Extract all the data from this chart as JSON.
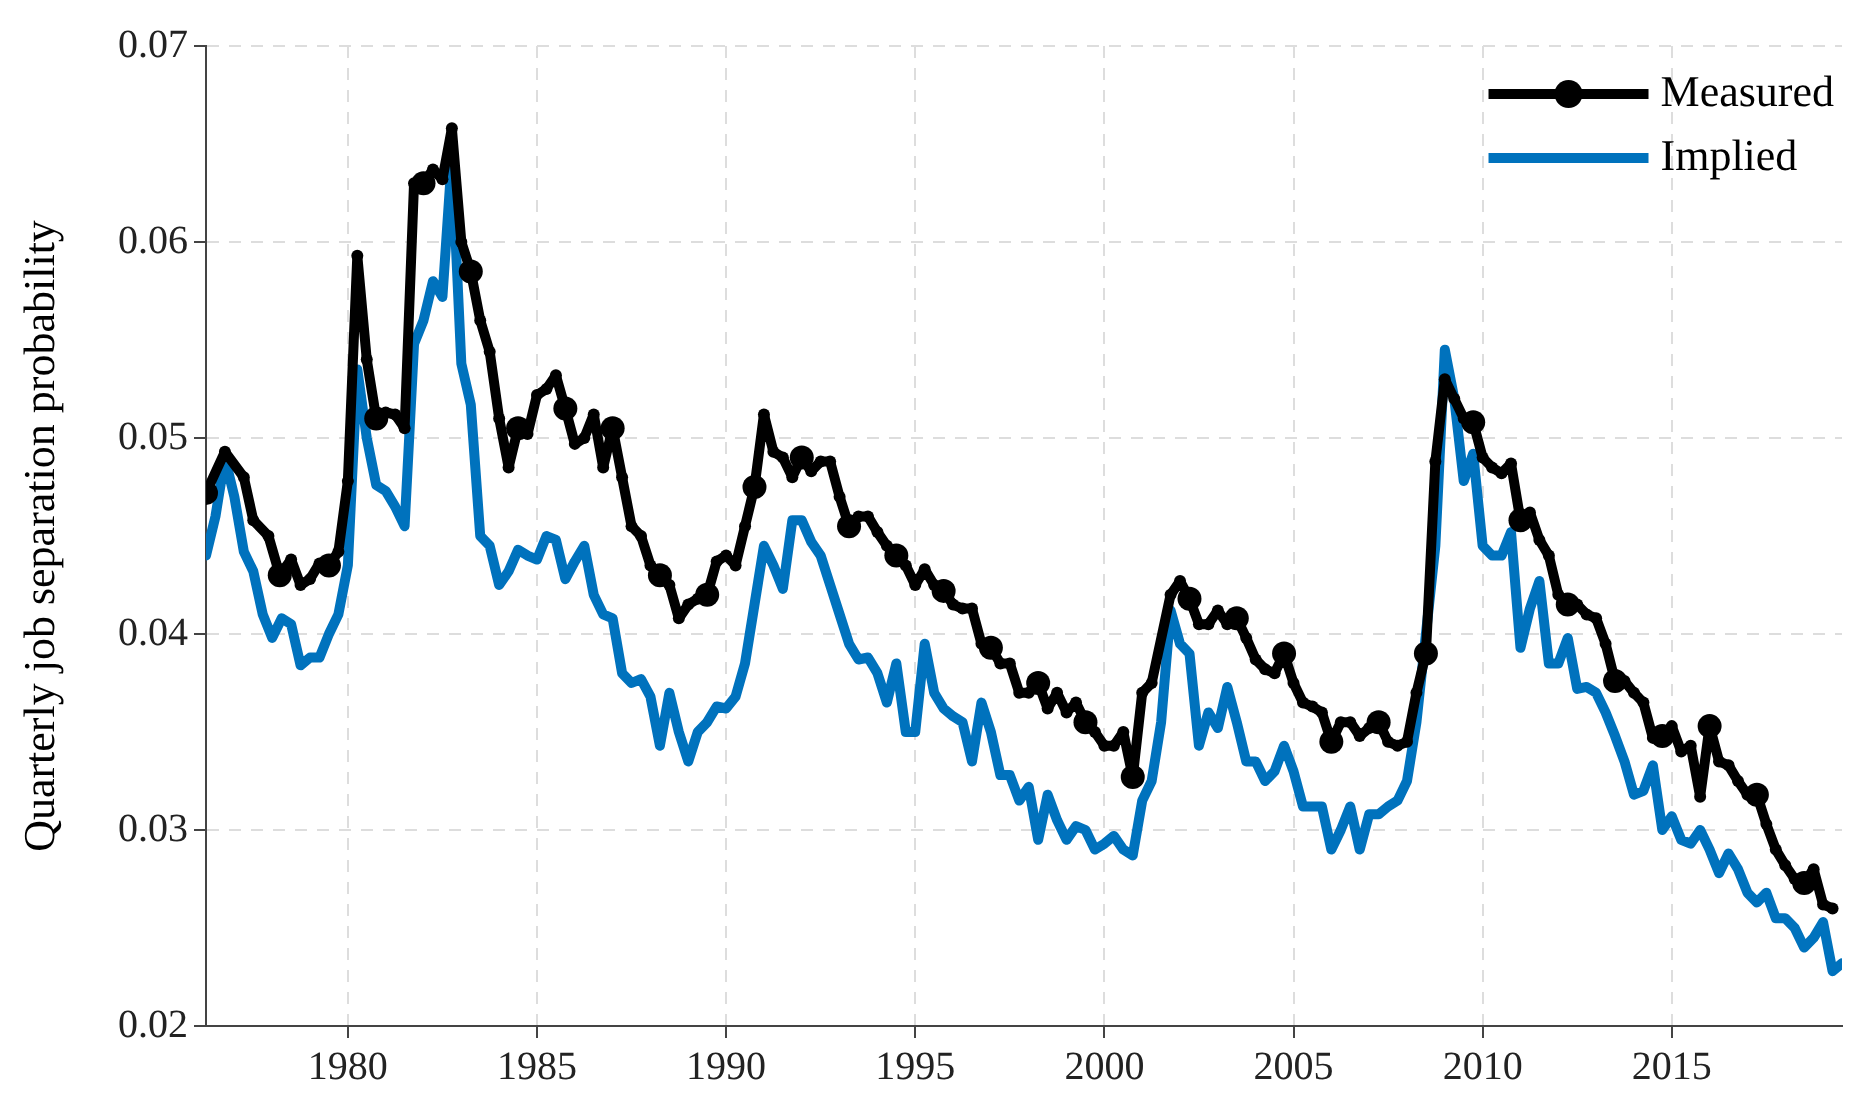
{
  "chart_data": {
    "type": "line",
    "ylabel": "Quarterly job separation probability",
    "xlim": [
      1976.25,
      2019.5
    ],
    "xticks": [
      1980,
      1985,
      1990,
      1995,
      2000,
      2005,
      2010,
      2015
    ],
    "ylim": [
      0.02,
      0.07
    ],
    "yticks": [
      0.02,
      0.03,
      0.04,
      0.05,
      0.06,
      0.07
    ],
    "grid": true,
    "legend": "top right",
    "line_style": "solid",
    "series": [
      {
        "name": "Measured",
        "color": "#000000",
        "marker": "circle",
        "x": [
          1976.25,
          1976.75,
          1977.25,
          1977.5,
          1977.9,
          1978.2,
          1978.5,
          1978.75,
          1979.0,
          1979.25,
          1979.5,
          1979.75,
          1980.0,
          1980.25,
          1980.5,
          1980.75,
          1981.0,
          1981.25,
          1981.5,
          1981.75,
          1982.0,
          1982.25,
          1982.5,
          1982.75,
          1983.0,
          1983.25,
          1983.5,
          1983.75,
          1984.0,
          1984.25,
          1984.5,
          1984.75,
          1985.0,
          1985.25,
          1985.5,
          1985.75,
          1986.0,
          1986.25,
          1986.5,
          1986.75,
          1987.0,
          1987.25,
          1987.5,
          1987.75,
          1988.0,
          1988.25,
          1988.5,
          1988.75,
          1989.0,
          1989.25,
          1989.5,
          1989.75,
          1990.0,
          1990.25,
          1990.5,
          1990.75,
          1991.0,
          1991.25,
          1991.5,
          1991.75,
          1992.0,
          1992.25,
          1992.5,
          1992.75,
          1993.0,
          1993.25,
          1993.5,
          1993.75,
          1994.0,
          1994.25,
          1994.5,
          1994.75,
          1995.0,
          1995.25,
          1995.5,
          1995.75,
          1996.0,
          1996.25,
          1996.5,
          1996.75,
          1997.0,
          1997.25,
          1997.5,
          1997.75,
          1998.0,
          1998.25,
          1998.5,
          1998.75,
          1999.0,
          1999.25,
          1999.5,
          1999.75,
          2000.0,
          2000.25,
          2000.5,
          2000.75,
          2001.0,
          2001.25,
          2001.75,
          2002.0,
          2002.25,
          2002.5,
          2002.75,
          2003.0,
          2003.25,
          2003.5,
          2003.75,
          2004.0,
          2004.25,
          2004.5,
          2004.75,
          2005.0,
          2005.25,
          2005.5,
          2005.75,
          2006.0,
          2006.25,
          2006.5,
          2006.75,
          2007.0,
          2007.25,
          2007.5,
          2007.75,
          2008.0,
          2008.25,
          2008.5,
          2008.75,
          2009.0,
          2009.25,
          2009.5,
          2009.75,
          2010.0,
          2010.25,
          2010.5,
          2010.75,
          2011.0,
          2011.25,
          2011.5,
          2011.75,
          2012.0,
          2012.25,
          2012.5,
          2012.75,
          2013.0,
          2013.25,
          2013.5,
          2013.75,
          2014.0,
          2014.25,
          2014.5,
          2014.75,
          2015.0,
          2015.25,
          2015.5,
          2015.75,
          2016.0,
          2016.25,
          2016.5,
          2016.75,
          2017.0,
          2017.25,
          2017.5,
          2017.75,
          2018.0,
          2018.25,
          2018.5,
          2018.75,
          2019.0,
          2019.25
        ],
        "values": [
          0.0472,
          0.0493,
          0.048,
          0.0458,
          0.045,
          0.043,
          0.0438,
          0.0425,
          0.0428,
          0.0436,
          0.0435,
          0.0442,
          0.0478,
          0.0593,
          0.054,
          0.051,
          0.0513,
          0.0512,
          0.0505,
          0.063,
          0.063,
          0.0637,
          0.0632,
          0.0658,
          0.06,
          0.0585,
          0.056,
          0.0544,
          0.051,
          0.0485,
          0.0505,
          0.0502,
          0.0522,
          0.0525,
          0.0532,
          0.0515,
          0.0497,
          0.05,
          0.0512,
          0.0485,
          0.0505,
          0.048,
          0.0455,
          0.045,
          0.0435,
          0.043,
          0.0425,
          0.0408,
          0.0415,
          0.0418,
          0.042,
          0.0437,
          0.044,
          0.0435,
          0.0455,
          0.0475,
          0.0512,
          0.0493,
          0.049,
          0.048,
          0.049,
          0.0483,
          0.0488,
          0.0488,
          0.047,
          0.0455,
          0.046,
          0.046,
          0.0452,
          0.0445,
          0.044,
          0.0435,
          0.0425,
          0.0433,
          0.0425,
          0.0422,
          0.0415,
          0.0413,
          0.0413,
          0.0395,
          0.0393,
          0.0385,
          0.0385,
          0.037,
          0.037,
          0.0375,
          0.0362,
          0.037,
          0.036,
          0.0365,
          0.0355,
          0.035,
          0.0343,
          0.0343,
          0.035,
          0.0327,
          0.037,
          0.0375,
          0.042,
          0.0427,
          0.0418,
          0.0405,
          0.0405,
          0.0412,
          0.0405,
          0.0408,
          0.0398,
          0.0387,
          0.0382,
          0.038,
          0.039,
          0.0375,
          0.0365,
          0.0363,
          0.036,
          0.0345,
          0.0355,
          0.0355,
          0.0348,
          0.0352,
          0.0355,
          0.0345,
          0.0343,
          0.0345,
          0.037,
          0.039,
          0.0488,
          0.053,
          0.052,
          0.051,
          0.0508,
          0.049,
          0.0485,
          0.0482,
          0.0487,
          0.0458,
          0.0462,
          0.0448,
          0.044,
          0.042,
          0.0415,
          0.0415,
          0.041,
          0.0408,
          0.0395,
          0.0376,
          0.0376,
          0.037,
          0.0365,
          0.0347,
          0.0348,
          0.0353,
          0.034,
          0.0343,
          0.0317,
          0.0353,
          0.0335,
          0.0333,
          0.0325,
          0.0318,
          0.0318,
          0.0303,
          0.029,
          0.0282,
          0.0275,
          0.0273,
          0.028,
          0.0262,
          0.026
        ]
      },
      {
        "name": "Implied",
        "color": "#0072bd",
        "marker": "none",
        "x": [
          1976.25,
          1976.5,
          1976.75,
          1977.0,
          1977.25,
          1977.5,
          1977.75,
          1978.0,
          1978.25,
          1978.5,
          1978.75,
          1979.0,
          1979.25,
          1979.5,
          1979.75,
          1980.0,
          1980.25,
          1980.5,
          1980.75,
          1981.0,
          1981.25,
          1981.5,
          1981.75,
          1982.0,
          1982.25,
          1982.5,
          1982.75,
          1983.0,
          1983.25,
          1983.5,
          1983.75,
          1984.0,
          1984.25,
          1984.5,
          1984.75,
          1985.0,
          1985.25,
          1985.5,
          1985.75,
          1986.0,
          1986.25,
          1986.5,
          1986.75,
          1987.0,
          1987.25,
          1987.5,
          1987.75,
          1988.0,
          1988.25,
          1988.5,
          1988.75,
          1989.0,
          1989.25,
          1989.5,
          1989.75,
          1990.0,
          1990.25,
          1990.5,
          1990.75,
          1991.0,
          1991.25,
          1991.5,
          1991.75,
          1992.0,
          1992.25,
          1992.5,
          1992.75,
          1993.0,
          1993.25,
          1993.5,
          1993.75,
          1994.0,
          1994.25,
          1994.5,
          1994.75,
          1995.0,
          1995.25,
          1995.5,
          1995.75,
          1996.0,
          1996.25,
          1996.5,
          1996.75,
          1997.0,
          1997.25,
          1997.5,
          1997.75,
          1998.0,
          1998.25,
          1998.5,
          1998.75,
          1999.0,
          1999.25,
          1999.5,
          1999.75,
          2000.0,
          2000.25,
          2000.5,
          2000.75,
          2001.0,
          2001.25,
          2001.5,
          2001.75,
          2002.0,
          2002.25,
          2002.5,
          2002.75,
          2003.0,
          2003.25,
          2003.5,
          2003.75,
          2004.0,
          2004.25,
          2004.5,
          2004.75,
          2005.0,
          2005.25,
          2005.5,
          2005.75,
          2006.0,
          2006.25,
          2006.5,
          2006.75,
          2007.0,
          2007.25,
          2007.5,
          2007.75,
          2008.0,
          2008.25,
          2008.5,
          2008.75,
          2009.0,
          2009.25,
          2009.5,
          2009.75,
          2010.0,
          2010.25,
          2010.5,
          2010.75,
          2011.0,
          2011.25,
          2011.5,
          2011.75,
          2012.0,
          2012.25,
          2012.5,
          2012.75,
          2013.0,
          2013.25,
          2013.5,
          2013.75,
          2014.0,
          2014.25,
          2014.5,
          2014.75,
          2015.0,
          2015.25,
          2015.5,
          2015.75,
          2016.0,
          2016.25,
          2016.5,
          2016.75,
          2017.0,
          2017.25,
          2017.5,
          2017.75,
          2018.0,
          2018.25,
          2018.5,
          2018.75,
          2019.0,
          2019.25,
          2019.5
        ],
        "values": [
          0.044,
          0.046,
          0.049,
          0.047,
          0.0442,
          0.0432,
          0.041,
          0.0398,
          0.0408,
          0.0405,
          0.0384,
          0.0388,
          0.0388,
          0.04,
          0.041,
          0.0435,
          0.0535,
          0.05,
          0.0476,
          0.0473,
          0.0465,
          0.0455,
          0.0548,
          0.056,
          0.058,
          0.0572,
          0.0643,
          0.0538,
          0.0517,
          0.045,
          0.0445,
          0.0425,
          0.0432,
          0.0443,
          0.044,
          0.0438,
          0.045,
          0.0448,
          0.0428,
          0.0437,
          0.0445,
          0.042,
          0.041,
          0.0408,
          0.038,
          0.0375,
          0.0377,
          0.0368,
          0.0343,
          0.037,
          0.035,
          0.0335,
          0.035,
          0.0355,
          0.0363,
          0.0362,
          0.0368,
          0.0385,
          0.0415,
          0.0445,
          0.0435,
          0.0423,
          0.0458,
          0.0458,
          0.0447,
          0.044,
          0.0425,
          0.041,
          0.0395,
          0.0387,
          0.0388,
          0.038,
          0.0365,
          0.0385,
          0.035,
          0.035,
          0.0395,
          0.037,
          0.0362,
          0.0358,
          0.0355,
          0.0335,
          0.0365,
          0.035,
          0.0328,
          0.0328,
          0.0315,
          0.0322,
          0.0295,
          0.0318,
          0.0305,
          0.0295,
          0.0302,
          0.03,
          0.029,
          0.0293,
          0.0297,
          0.029,
          0.0287,
          0.0315,
          0.0325,
          0.0355,
          0.0412,
          0.0395,
          0.039,
          0.0343,
          0.036,
          0.0352,
          0.0373,
          0.0355,
          0.0335,
          0.0335,
          0.0325,
          0.033,
          0.0343,
          0.033,
          0.0312,
          0.0312,
          0.0312,
          0.029,
          0.03,
          0.0312,
          0.029,
          0.0308,
          0.0308,
          0.0312,
          0.0315,
          0.0325,
          0.0355,
          0.04,
          0.0445,
          0.0545,
          0.052,
          0.0478,
          0.0492,
          0.0445,
          0.044,
          0.044,
          0.0452,
          0.0393,
          0.0413,
          0.0427,
          0.0385,
          0.0385,
          0.0398,
          0.0372,
          0.0373,
          0.037,
          0.036,
          0.0348,
          0.0335,
          0.0318,
          0.032,
          0.0333,
          0.03,
          0.0307,
          0.0295,
          0.0293,
          0.03,
          0.029,
          0.0278,
          0.0288,
          0.028,
          0.0268,
          0.0263,
          0.0268,
          0.0255,
          0.0255,
          0.025,
          0.024,
          0.0245,
          0.0253,
          0.0228,
          0.0232
        ]
      }
    ]
  }
}
